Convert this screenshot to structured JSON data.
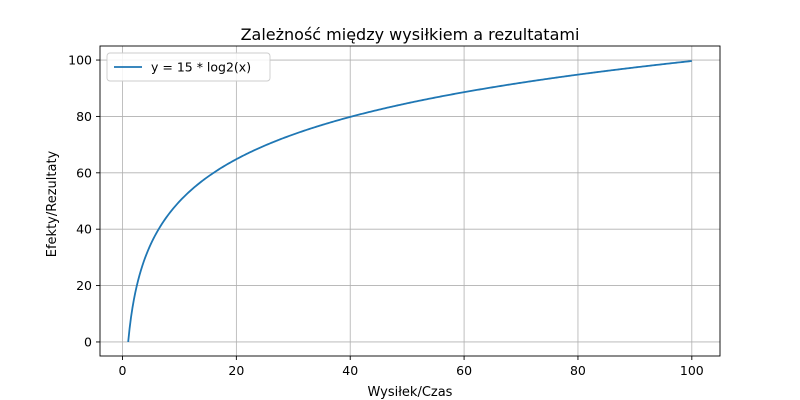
{
  "chart_data": {
    "type": "line",
    "title": "Zależność między wysiłkiem a rezultatami",
    "xlabel": "Wysiłek/Czas",
    "ylabel": "Efekty/Rezultaty",
    "xlim": [
      -3.95,
      104.95
    ],
    "ylim": [
      -4.983,
      104.983
    ],
    "xticks": [
      0,
      20,
      40,
      60,
      80,
      100
    ],
    "yticks": [
      0,
      20,
      40,
      60,
      80,
      100
    ],
    "xtick_labels": [
      "0",
      "20",
      "40",
      "60",
      "80",
      "100"
    ],
    "ytick_labels": [
      "0",
      "20",
      "40",
      "60",
      "80",
      "100"
    ],
    "grid": true,
    "legend_position": "upper-left",
    "series": [
      {
        "name": "y = 15 * log2(x)",
        "color": "#1f77b4",
        "formula": "15 * log2(x)",
        "x": [
          1,
          1.5,
          2,
          3,
          4,
          5,
          6,
          8,
          10,
          12,
          15,
          20,
          25,
          30,
          40,
          50,
          60,
          70,
          80,
          90,
          100
        ],
        "y": [
          0,
          8.77,
          15,
          23.77,
          30,
          34.83,
          38.77,
          45,
          49.83,
          53.77,
          58.6,
          64.83,
          69.66,
          73.6,
          79.83,
          84.66,
          88.6,
          91.94,
          94.83,
          97.38,
          99.66
        ]
      }
    ]
  }
}
